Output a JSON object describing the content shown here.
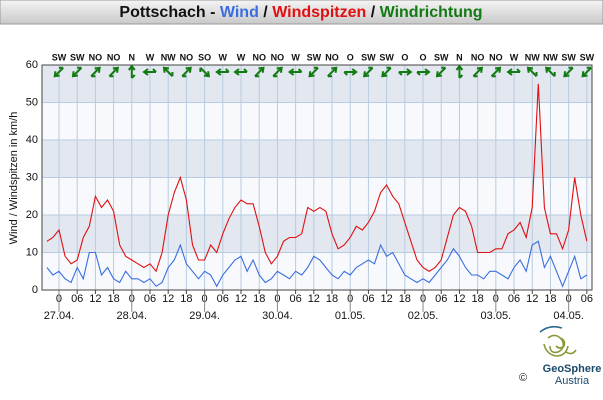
{
  "chart_data": {
    "type": "line",
    "title_parts": [
      {
        "text": "Pottschach",
        "color": "#111111"
      },
      {
        "text": " - ",
        "color": "#111111"
      },
      {
        "text": "Wind",
        "color": "#3a6ee0"
      },
      {
        "text": " / ",
        "color": "#111111"
      },
      {
        "text": "Windspitzen",
        "color": "#e01010"
      },
      {
        "text": " / ",
        "color": "#111111"
      },
      {
        "text": "Windrichtung",
        "color": "#117a11"
      }
    ],
    "y_label": "Wind / Windspitzen in km/h",
    "ylim": [
      0,
      60
    ],
    "yticks": [
      0,
      10,
      20,
      30,
      40,
      50,
      60
    ],
    "xlim": [
      -5.6,
      175.7
    ],
    "xticks": [
      0,
      {
        "value": 6,
        "label": "06"
      },
      12,
      18,
      {
        "value": 24,
        "label": "0"
      },
      {
        "value": 30,
        "label": "06"
      },
      {
        "value": 36,
        "label": "12"
      },
      {
        "value": 42,
        "label": "18"
      },
      {
        "value": 48,
        "label": "0"
      },
      {
        "value": 54,
        "label": "06"
      },
      {
        "value": 60,
        "label": "12"
      },
      {
        "value": 66,
        "label": "18"
      },
      {
        "value": 72,
        "label": "0"
      },
      {
        "value": 78,
        "label": "06"
      },
      {
        "value": 84,
        "label": "12"
      },
      {
        "value": 90,
        "label": "18"
      },
      {
        "value": 96,
        "label": "0"
      },
      {
        "value": 102,
        "label": "06"
      },
      {
        "value": 108,
        "label": "12"
      },
      {
        "value": 114,
        "label": "18"
      },
      {
        "value": 120,
        "label": "0"
      },
      {
        "value": 126,
        "label": "06"
      },
      {
        "value": 132,
        "label": "12"
      },
      {
        "value": 138,
        "label": "18"
      },
      {
        "value": 144,
        "label": "0"
      },
      {
        "value": 150,
        "label": "06"
      },
      {
        "value": 156,
        "label": "12"
      },
      {
        "value": 162,
        "label": "18"
      },
      {
        "value": 168,
        "label": "0"
      },
      {
        "value": 174,
        "label": "06"
      }
    ],
    "date_labels": [
      {
        "value": 0,
        "label": "27.04."
      },
      {
        "value": 24,
        "label": "28.04."
      },
      {
        "value": 48,
        "label": "29.04."
      },
      {
        "value": 72,
        "label": "30.04."
      },
      {
        "value": 96,
        "label": "01.05."
      },
      {
        "value": 120,
        "label": "02.05."
      },
      {
        "value": 144,
        "label": "03.05."
      },
      {
        "value": 168,
        "label": "04.05."
      }
    ],
    "directions": [
      "SW",
      "SW",
      "NO",
      "NO",
      "N",
      "W",
      "NW",
      "NO",
      "SO",
      "W",
      "W",
      "NO",
      "NO",
      "W",
      "SW",
      "NO",
      "O",
      "SW",
      "SW",
      "O",
      "O",
      "SW",
      "N",
      "NO",
      "NO",
      "W",
      "NW",
      "NW",
      "SW",
      "SW"
    ],
    "direction_color": "#117a11",
    "shaded_bands": true,
    "grid": true,
    "x": [
      -4,
      -2,
      0,
      2,
      4,
      6,
      8,
      10,
      12,
      14,
      16,
      18,
      20,
      22,
      24,
      26,
      28,
      30,
      32,
      34,
      36,
      38,
      40,
      42,
      44,
      46,
      48,
      50,
      52,
      54,
      56,
      58,
      60,
      62,
      64,
      66,
      68,
      70,
      72,
      74,
      76,
      78,
      80,
      82,
      84,
      86,
      88,
      90,
      92,
      94,
      96,
      98,
      100,
      102,
      104,
      106,
      108,
      110,
      112,
      114,
      116,
      118,
      120,
      122,
      124,
      126,
      128,
      130,
      132,
      134,
      136,
      138,
      140,
      142,
      144,
      146,
      148,
      150,
      152,
      154,
      156,
      158,
      160,
      162,
      164,
      166,
      168,
      170,
      172,
      174
    ],
    "series": [
      {
        "name": "Windspitzen",
        "color": "#e01010",
        "values": [
          13,
          14,
          16,
          9,
          7,
          8,
          14,
          17,
          25,
          22,
          24,
          21,
          12,
          9,
          8,
          7,
          6,
          7,
          5,
          10,
          20,
          26,
          30,
          24,
          12,
          8,
          8,
          12,
          10,
          15,
          19,
          22,
          24,
          23,
          23,
          17,
          10,
          7,
          9,
          13,
          14,
          14,
          15,
          22,
          21,
          22,
          21,
          15,
          11,
          12,
          14,
          17,
          16,
          18,
          21,
          26,
          28,
          25,
          23,
          18,
          13,
          8,
          6,
          5,
          6,
          8,
          14,
          20,
          22,
          21,
          17,
          10,
          10,
          10,
          11,
          11,
          15,
          16,
          18,
          14,
          22,
          55,
          22,
          15,
          15,
          11,
          16,
          30,
          20,
          13
        ]
      },
      {
        "name": "Wind",
        "color": "#3a6ee0",
        "values": [
          6,
          4,
          5,
          3,
          2,
          6,
          3,
          10,
          10,
          4,
          6,
          3,
          2,
          5,
          3,
          3,
          2,
          3,
          1,
          2,
          6,
          8,
          12,
          7,
          5,
          3,
          5,
          4,
          1,
          4,
          6,
          8,
          9,
          5,
          8,
          4,
          2,
          3,
          5,
          4,
          3,
          5,
          4,
          6,
          9,
          8,
          6,
          4,
          3,
          5,
          4,
          6,
          7,
          8,
          7,
          12,
          9,
          10,
          7,
          4,
          3,
          2,
          3,
          2,
          4,
          6,
          8,
          11,
          9,
          6,
          4,
          4,
          3,
          5,
          5,
          4,
          3,
          6,
          8,
          5,
          12,
          13,
          6,
          9,
          5,
          1,
          5,
          9,
          3,
          4
        ]
      }
    ],
    "logo": {
      "name": "GeoSphere",
      "sub": "Austria",
      "copyright": "©"
    }
  }
}
